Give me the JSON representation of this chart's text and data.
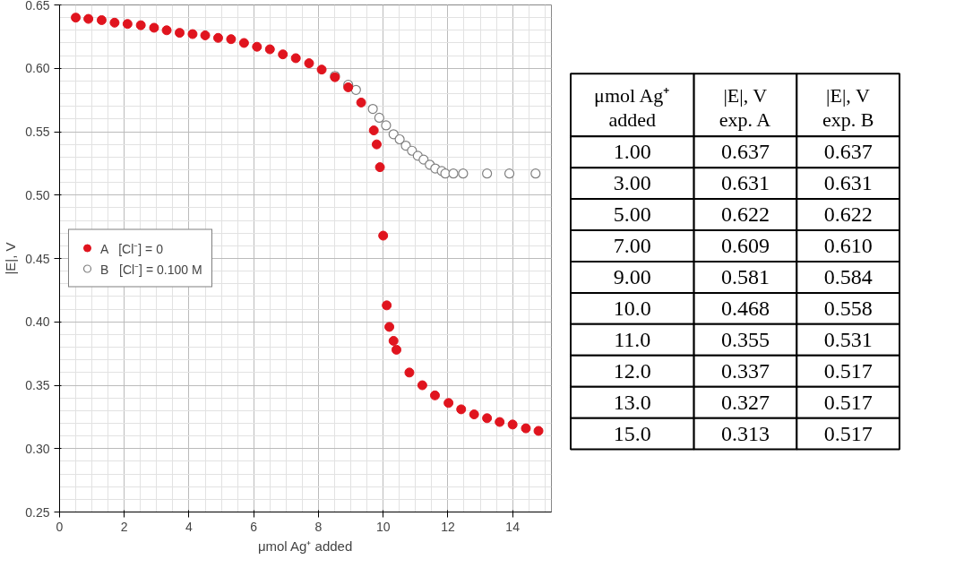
{
  "chart_data": [
    {
      "type": "scatter",
      "xlabel": "μmol Ag⁺ added",
      "ylabel": "|E|, V",
      "xlim": [
        0,
        15.2
      ],
      "xticks": [
        0,
        2,
        4,
        6,
        8,
        10,
        12,
        14
      ],
      "ylim": [
        0.25,
        0.65
      ],
      "yticks": [
        {
          "value": 0.25,
          "label": "0.25"
        },
        {
          "value": 0.3,
          "label": "0.30"
        },
        {
          "value": 0.35,
          "label": "0.35"
        },
        {
          "value": 0.4,
          "label": "0.40"
        },
        {
          "value": 0.45,
          "label": "0.45"
        },
        {
          "value": 0.5,
          "label": "0.50"
        },
        {
          "value": 0.55,
          "label": "0.55"
        },
        {
          "value": 0.6,
          "label": "0.60"
        },
        {
          "value": 0.65,
          "label": "0.65"
        }
      ],
      "grid": true,
      "legend": "left",
      "series": [
        {
          "name": "B   [Cl⁻] = 0.100 M",
          "color": "#808080",
          "marker": "circle_open",
          "x": [
            8.51,
            8.92,
            9.16,
            9.68,
            9.88,
            10.09,
            10.32,
            10.51,
            10.7,
            10.89,
            11.07,
            11.25,
            11.44,
            11.61,
            11.81,
            11.92,
            12.17,
            12.47,
            13.21,
            13.9,
            14.71
          ],
          "values": [
            0.594,
            0.587,
            0.583,
            0.568,
            0.561,
            0.555,
            0.548,
            0.544,
            0.539,
            0.535,
            0.531,
            0.528,
            0.524,
            0.521,
            0.519,
            0.517,
            0.517,
            0.517,
            0.517,
            0.517,
            0.517
          ]
        },
        {
          "name": "A   [Cl⁻] = 0",
          "color": "#e0141e",
          "marker": "circle",
          "x": [
            0.5,
            0.89,
            1.3,
            1.7,
            2.1,
            2.51,
            2.92,
            3.31,
            3.71,
            4.11,
            4.5,
            4.9,
            5.3,
            5.7,
            6.1,
            6.5,
            6.9,
            7.3,
            7.71,
            8.1,
            8.51,
            8.92,
            9.32,
            9.71,
            9.8,
            9.9,
            10.0,
            10.11,
            10.19,
            10.32,
            10.41,
            10.81,
            11.21,
            11.6,
            12.02,
            12.41,
            12.81,
            13.21,
            13.6,
            14.0,
            14.41,
            14.8
          ],
          "values": [
            0.64,
            0.639,
            0.638,
            0.636,
            0.635,
            0.634,
            0.632,
            0.63,
            0.628,
            0.627,
            0.626,
            0.624,
            0.623,
            0.62,
            0.617,
            0.615,
            0.611,
            0.608,
            0.604,
            0.599,
            0.593,
            0.585,
            0.573,
            0.551,
            0.54,
            0.522,
            0.468,
            0.413,
            0.396,
            0.385,
            0.378,
            0.36,
            0.35,
            0.342,
            0.336,
            0.331,
            0.327,
            0.324,
            0.321,
            0.319,
            0.316,
            0.314
          ]
        }
      ]
    },
    {
      "type": "other",
      "annotations": [
        "μmol Ag⁺ added",
        "|E|, V exp. A",
        "|E|, V exp. B",
        "1.00",
        "0.637",
        "0.637",
        "3.00",
        "0.631",
        "0.631",
        "5.00",
        "0.622",
        "0.622",
        "7.00",
        "0.609",
        "0.610",
        "9.00",
        "0.581",
        "0.584",
        "10.0",
        "0.468",
        "0.558",
        "11.0",
        "0.355",
        "0.531",
        "12.0",
        "0.337",
        "0.517",
        "13.0",
        "0.327",
        "0.517",
        "15.0",
        "0.313",
        "0.517"
      ]
    }
  ]
}
